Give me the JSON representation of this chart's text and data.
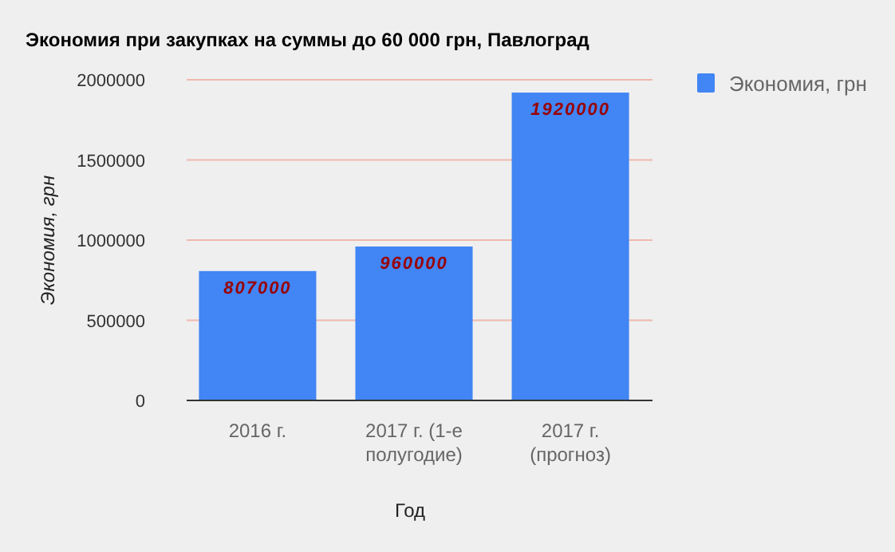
{
  "chart_data": {
    "type": "bar",
    "title": "Экономия при закупках на суммы до 60 000 грн, Павлоград",
    "xlabel": "Год",
    "ylabel": "Экономия, грн",
    "categories": [
      "2016 г.",
      "2017 г. (1-е полугодие)",
      "2017 г. (прогноз)"
    ],
    "series": [
      {
        "name": "Экономия, грн",
        "color": "#4285f4",
        "values": [
          807000,
          960000,
          1920000
        ]
      }
    ],
    "ylim": [
      0,
      2000000
    ],
    "yticks": [
      0,
      500000,
      1000000,
      1500000,
      2000000
    ],
    "grid": "y",
    "legend": "top right",
    "data_labels": true
  }
}
